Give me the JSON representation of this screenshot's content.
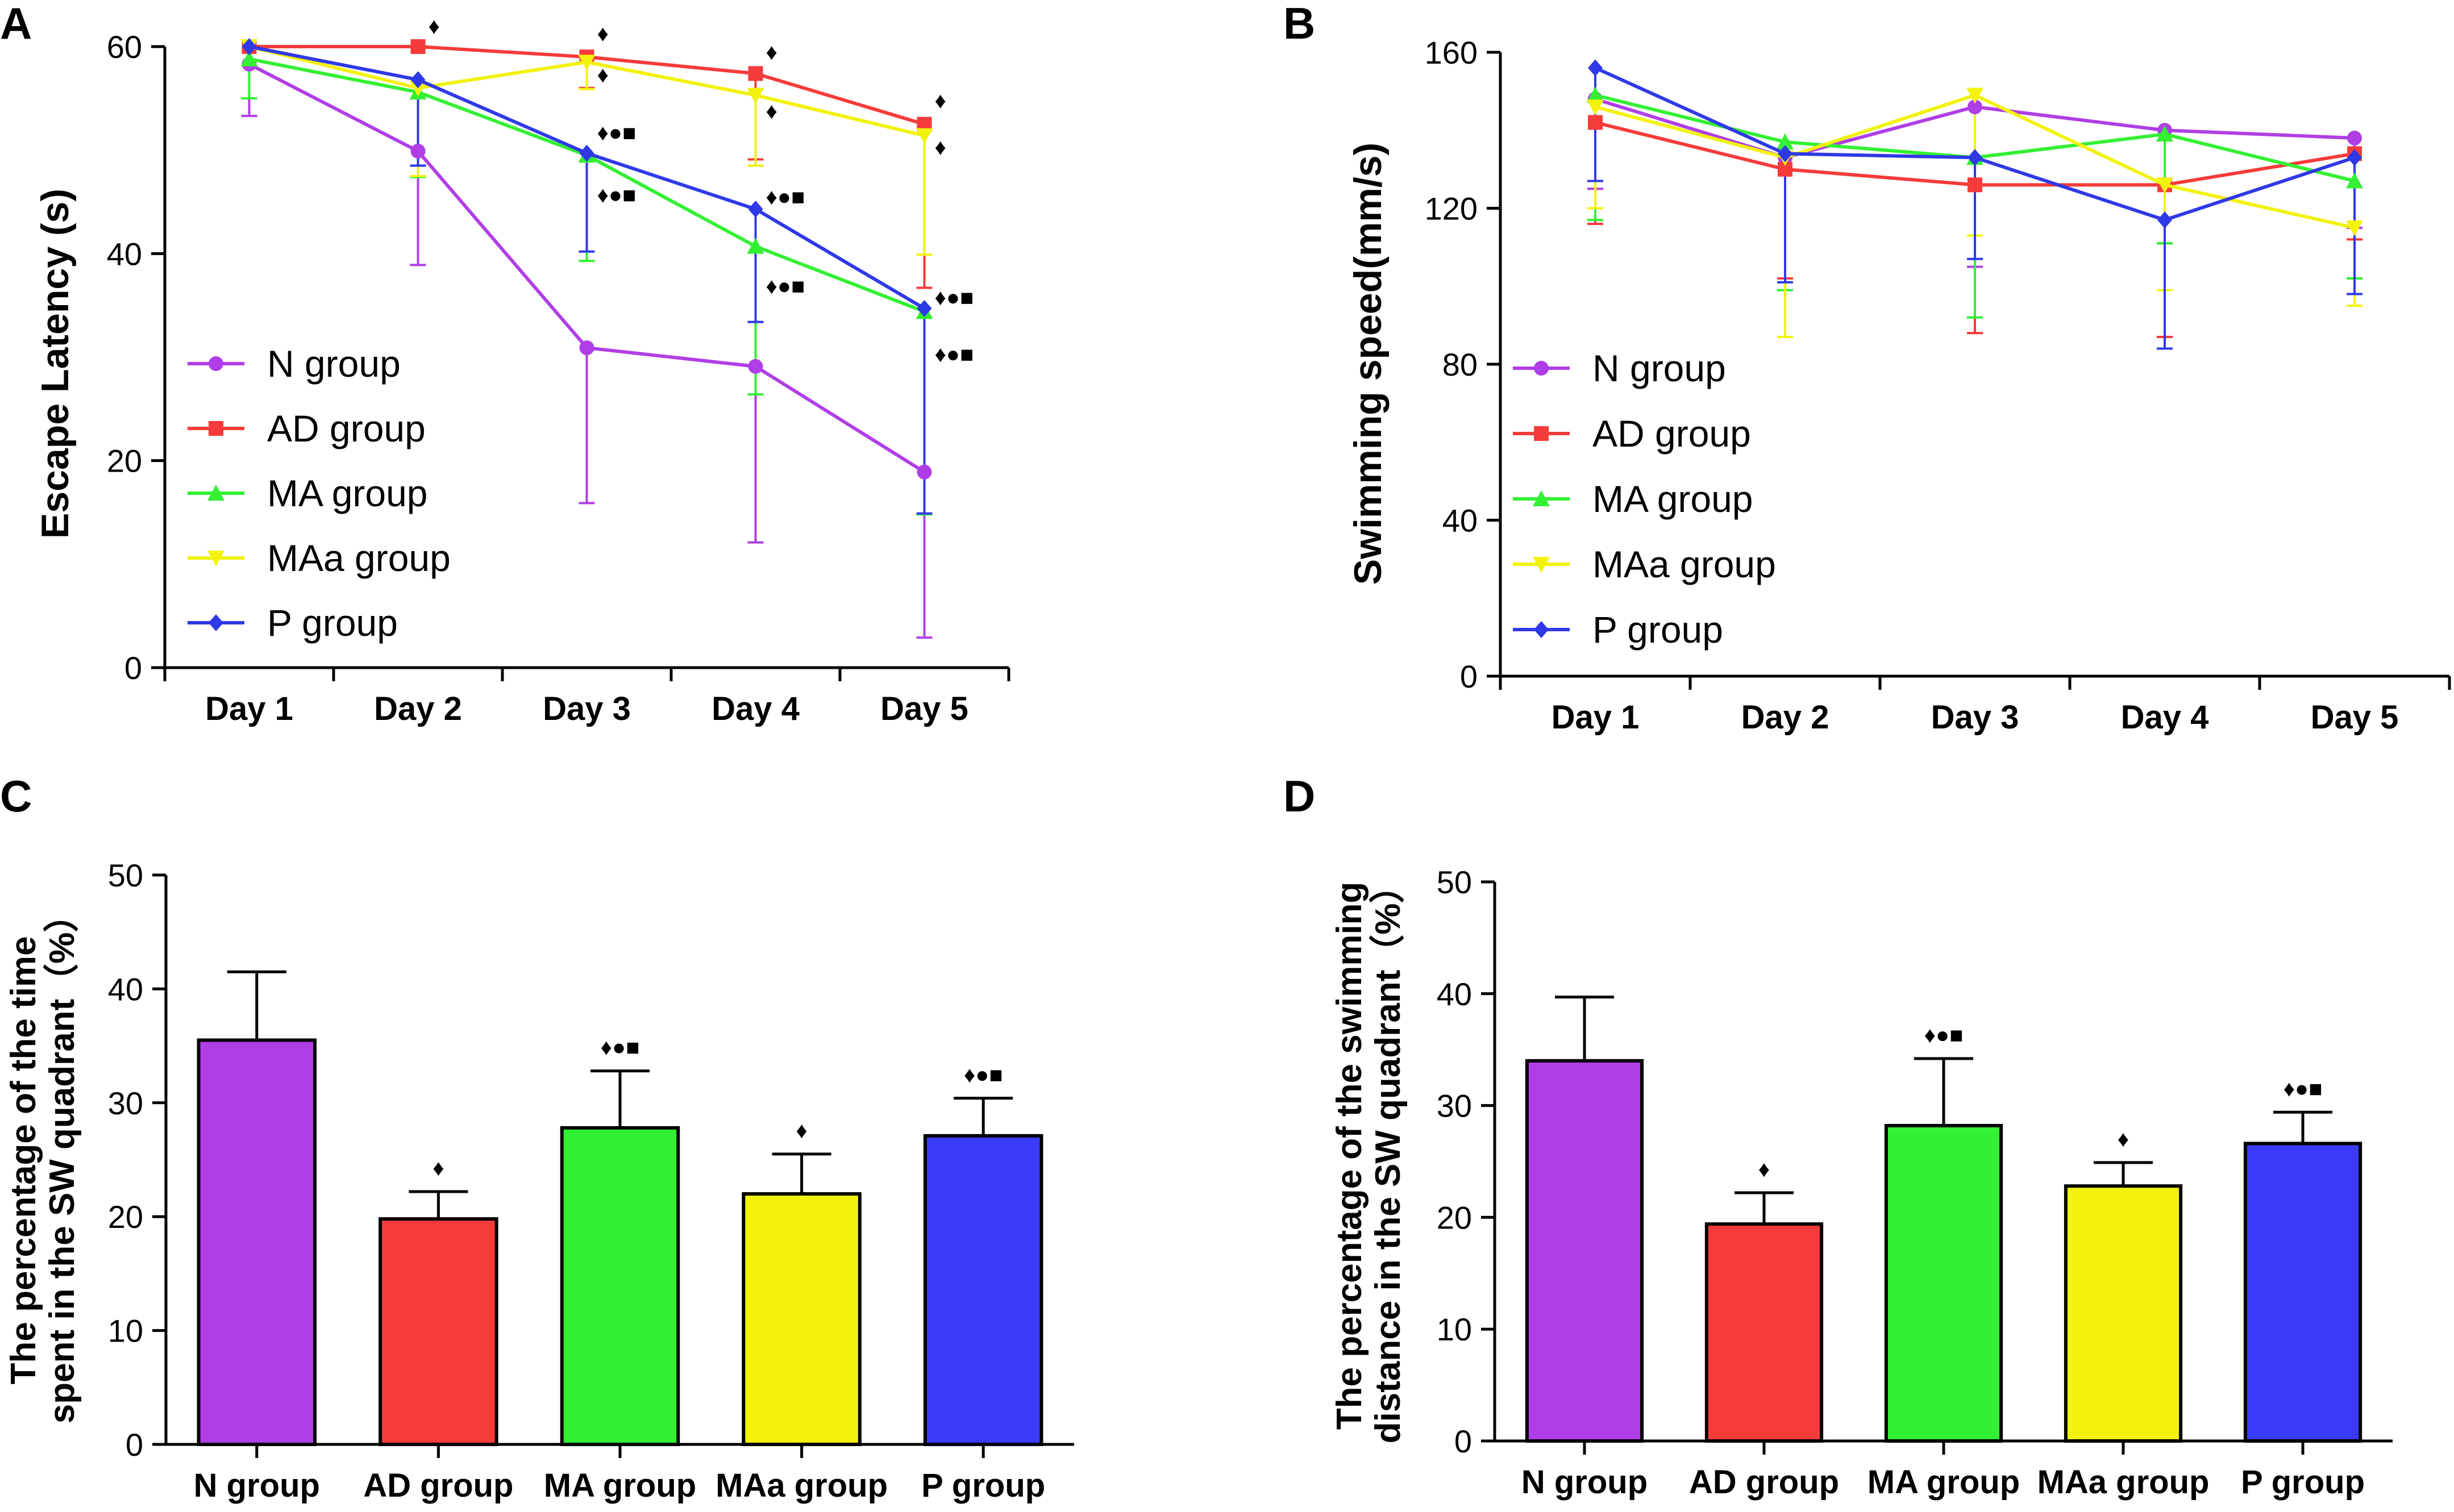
{
  "chart_data": [
    {
      "panel": "A",
      "type": "line",
      "ylabel": "Escape Latency (s)",
      "xlabel": "",
      "ylim": [
        0,
        60
      ],
      "yticks": [
        0,
        20,
        40,
        60
      ],
      "categories": [
        "Day 1",
        "Day 2",
        "Day 3",
        "Day 4",
        "Day 5"
      ],
      "legend_position": "bottom-left",
      "series": [
        {
          "name": "N group",
          "color": "#b03ee6",
          "marker": "circle",
          "values": [
            58.3,
            49.9,
            30.9,
            29.1,
            18.9
          ],
          "err_low": [
            5,
            11,
            15,
            17,
            16
          ],
          "err_high": [
            0,
            0,
            0,
            0,
            0
          ]
        },
        {
          "name": "AD group",
          "color": "#f63b3b",
          "marker": "square",
          "values": [
            60,
            60,
            59,
            57.4,
            52.5
          ],
          "err_low": [
            0,
            0,
            3,
            8.3,
            15.8
          ],
          "err_high": [
            0,
            0,
            0,
            0,
            0
          ]
        },
        {
          "name": "MA group",
          "color": "#33f033",
          "marker": "triangle-up",
          "values": [
            58.8,
            55.6,
            49.5,
            40.7,
            34.4
          ],
          "err_low": [
            3.8,
            8.2,
            10.2,
            14.3,
            19.6
          ],
          "err_high": [
            0,
            0,
            0,
            0,
            0
          ]
        },
        {
          "name": "MAa group",
          "color": "#f2f20d",
          "marker": "triangle-down",
          "values": [
            60,
            56,
            58.5,
            55.3,
            51.4
          ],
          "err_low": [
            0,
            8.5,
            2.6,
            6.8,
            11.5
          ],
          "err_high": [
            0,
            0,
            0,
            0,
            0
          ]
        },
        {
          "name": "P group",
          "color": "#2f39e6",
          "marker": "diamond",
          "values": [
            60,
            56.8,
            49.7,
            44.3,
            34.7
          ],
          "err_low": [
            0,
            8.3,
            9.5,
            10.9,
            19.8
          ],
          "err_high": [
            0,
            0,
            0,
            0,
            0
          ]
        }
      ],
      "annotations": [
        {
          "category": "Day 2",
          "text": "♦",
          "y": 62
        },
        {
          "category": "Day 3",
          "text": "♦",
          "y": 61.3
        },
        {
          "category": "Day 3",
          "text": "♦",
          "y": 57.3
        },
        {
          "category": "Day 3",
          "text": "♦●■",
          "y": 51.7
        },
        {
          "category": "Day 3",
          "text": "♦●■",
          "y": 45.7
        },
        {
          "category": "Day 4",
          "text": "♦",
          "y": 59.5
        },
        {
          "category": "Day 4",
          "text": "♦",
          "y": 53.8
        },
        {
          "category": "Day 4",
          "text": "♦●■",
          "y": 45.5
        },
        {
          "category": "Day 4",
          "text": "♦●■",
          "y": 36.9
        },
        {
          "category": "Day 5",
          "text": "♦",
          "y": 54.8
        },
        {
          "category": "Day 5",
          "text": "♦",
          "y": 50.3
        },
        {
          "category": "Day 5",
          "text": "♦●■",
          "y": 35.8
        },
        {
          "category": "Day 5",
          "text": "♦●■",
          "y": 30.3
        }
      ]
    },
    {
      "panel": "B",
      "type": "line",
      "ylabel": "Swimming speed(mm/s)",
      "xlabel": "",
      "ylim": [
        0,
        160
      ],
      "yticks": [
        0,
        40,
        80,
        120,
        160
      ],
      "categories": [
        "Day 1",
        "Day 2",
        "Day 3",
        "Day 4",
        "Day 5"
      ],
      "legend_position": "bottom-left",
      "series": [
        {
          "name": "N group",
          "color": "#b03ee6",
          "marker": "circle",
          "values": [
            148,
            133,
            146,
            140,
            138
          ],
          "err_low": [
            23,
            31,
            41,
            29,
            23
          ],
          "err_high": [
            0,
            0,
            0,
            0,
            0
          ]
        },
        {
          "name": "AD group",
          "color": "#f63b3b",
          "marker": "square",
          "values": [
            142,
            130,
            126,
            126,
            134
          ],
          "err_low": [
            26,
            28,
            38,
            39,
            22
          ],
          "err_high": [
            0,
            0,
            0,
            0,
            0
          ]
        },
        {
          "name": "MA group",
          "color": "#33f033",
          "marker": "triangle-up",
          "values": [
            149,
            137,
            133,
            139,
            127
          ],
          "err_low": [
            32,
            38,
            41,
            28,
            25
          ],
          "err_high": [
            0,
            0,
            0,
            0,
            0
          ]
        },
        {
          "name": "MAa group",
          "color": "#f2f20d",
          "marker": "triangle-down",
          "values": [
            146,
            133,
            149,
            126,
            115
          ],
          "err_low": [
            26,
            46,
            36,
            27,
            20
          ],
          "err_high": [
            0,
            0,
            0,
            0,
            0
          ]
        },
        {
          "name": "P group",
          "color": "#2f39e6",
          "marker": "diamond",
          "values": [
            156,
            134,
            133,
            117,
            133
          ],
          "err_low": [
            29,
            33,
            26,
            33,
            35
          ],
          "err_high": [
            0,
            0,
            0,
            0,
            0
          ]
        }
      ],
      "annotations": []
    },
    {
      "panel": "C",
      "type": "bar",
      "ylabel_lines": [
        "The percentage of the time",
        "spent in the SW quadrant（%）"
      ],
      "xlabel": "",
      "ylim": [
        0,
        50
      ],
      "yticks": [
        0,
        10,
        20,
        30,
        40,
        50
      ],
      "categories": [
        "N group",
        "AD group",
        "MA group",
        "MAa group",
        "P group"
      ],
      "values": [
        35.5,
        19.8,
        27.8,
        22.0,
        27.1
      ],
      "errors": [
        6.0,
        2.4,
        5.0,
        3.5,
        3.3
      ],
      "colors": [
        "#b03ee6",
        "#f63b3b",
        "#33f033",
        "#f2f20d",
        "#3a3afa"
      ],
      "significance": [
        "",
        "♦",
        "♦●■",
        "♦",
        "♦●■"
      ]
    },
    {
      "panel": "D",
      "type": "bar",
      "ylabel_lines": [
        "The percentage of the swimming",
        "distance in the SW quadrant（%）"
      ],
      "xlabel": "",
      "ylim": [
        0,
        50
      ],
      "yticks": [
        0,
        10,
        20,
        30,
        40,
        50
      ],
      "categories": [
        "N group",
        "AD group",
        "MA group",
        "MAa group",
        "P group"
      ],
      "values": [
        34.0,
        19.4,
        28.2,
        22.8,
        26.6
      ],
      "errors": [
        5.7,
        2.8,
        6.0,
        2.1,
        2.8
      ],
      "colors": [
        "#b03ee6",
        "#f63b3b",
        "#33f033",
        "#f2f20d",
        "#3a3afa"
      ],
      "significance": [
        "",
        "♦",
        "♦●■",
        "♦",
        "♦●■"
      ]
    }
  ]
}
